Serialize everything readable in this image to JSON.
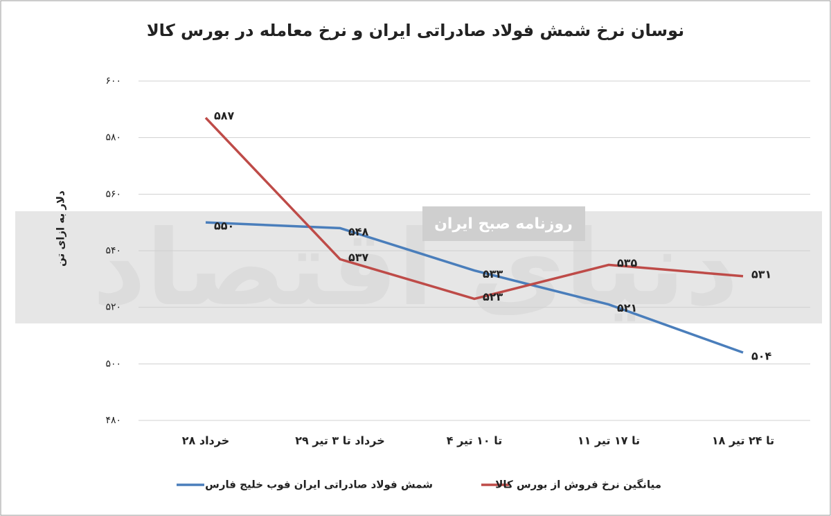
{
  "chart_data": {
    "type": "line",
    "title": "نوسان نرخ شمش فولاد صادراتی ایران و نرخ معامله در بورس کالا",
    "y_label": "دلار به ازای تن",
    "watermark": [
      "دنیای اقتصاد",
      "روزنامه صبح ایران"
    ],
    "categories": [
      "۲۸ خرداد",
      "۲۹ خرداد تا ۳ تیر",
      "۴ تا ۱۰ تیر",
      "۱۱ تا ۱۷ تیر",
      "۱۸ تا ۲۴ تیر"
    ],
    "series": [
      {
        "name": "شمش فولاد صادراتی ایران فوب خلیج فارس",
        "color": "#4a7ebb",
        "values": [
          550,
          548,
          533,
          521,
          504
        ],
        "value_labels": [
          "۵۵۰",
          "۵۴۸",
          "۵۳۳",
          "۵۲۱",
          "۵۰۴"
        ]
      },
      {
        "name": "میانگین نرخ فروش از بورس کالا",
        "color": "#be4b48",
        "values": [
          587,
          537,
          523,
          535,
          531
        ],
        "value_labels": [
          "۵۸۷",
          "۵۳۷",
          "۵۲۳",
          "۵۳۵",
          "۵۳۱"
        ]
      }
    ],
    "ylim": [
      480,
      600
    ],
    "yticks": [
      {
        "value": 480,
        "label": "۴۸۰"
      },
      {
        "value": 500,
        "label": "۵۰۰"
      },
      {
        "value": 520,
        "label": "۵۲۰"
      },
      {
        "value": 540,
        "label": "۵۴۰"
      },
      {
        "value": 560,
        "label": "۵۶۰"
      },
      {
        "value": 580,
        "label": "۵۸۰"
      },
      {
        "value": 600,
        "label": "۶۰۰"
      }
    ],
    "grid": true
  }
}
